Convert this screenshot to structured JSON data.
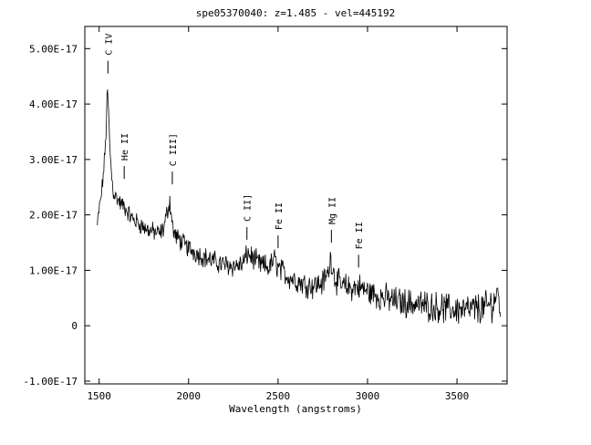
{
  "chart_data": {
    "type": "line",
    "title": "spe05370040: z=1.485 - vel=445192",
    "xlabel": "Wavelength (angstroms)",
    "ylabel": "",
    "xlim": [
      1420,
      3780
    ],
    "ylim": [
      -1.05e-17,
      5.4e-17
    ],
    "x_ticks": [
      1500,
      2000,
      2500,
      3000,
      3500
    ],
    "x_tick_labels": [
      "1500",
      "2000",
      "2500",
      "3000",
      "3500"
    ],
    "y_ticks": [
      -1e-17,
      0,
      1e-17,
      2e-17,
      3e-17,
      4e-17,
      5e-17
    ],
    "y_tick_labels": [
      "-1.00E-17",
      "0",
      "1.00E-17",
      "2.00E-17",
      "3.00E-17",
      "4.00E-17",
      "5.00E-17"
    ],
    "grid": false,
    "series": [
      {
        "x": [
          1490,
          1500,
          1510,
          1520,
          1530,
          1540,
          1546,
          1552,
          1560,
          1570,
          1580,
          1600,
          1620,
          1640,
          1660,
          1680,
          1700,
          1720,
          1740,
          1760,
          1780,
          1800,
          1820,
          1840,
          1860,
          1880,
          1895,
          1905,
          1915,
          1930,
          1950,
          1980,
          2000,
          2050,
          2100,
          2150,
          2200,
          2250,
          2300,
          2330,
          2350,
          2380,
          2400,
          2450,
          2480,
          2500,
          2550,
          2600,
          2650,
          2700,
          2750,
          2780,
          2795,
          2805,
          2820,
          2850,
          2900,
          2950,
          3000,
          3050,
          3100,
          3150,
          3200,
          3250,
          3300,
          3350,
          3400,
          3450,
          3500,
          3550,
          3600,
          3650,
          3700,
          3730,
          3745
        ],
        "values": [
          1.8e-17,
          2.1e-17,
          2.3e-17,
          2.6e-17,
          3e-17,
          3.6e-17,
          4.3e-17,
          3.9e-17,
          3.2e-17,
          2.7e-17,
          2.4e-17,
          2.3e-17,
          2.2e-17,
          2.15e-17,
          2.05e-17,
          1.95e-17,
          1.9e-17,
          1.85e-17,
          1.8e-17,
          1.75e-17,
          1.72e-17,
          1.7e-17,
          1.68e-17,
          1.66e-17,
          1.75e-17,
          2.05e-17,
          2.25e-17,
          1.95e-17,
          1.7e-17,
          1.6e-17,
          1.55e-17,
          1.45e-17,
          1.4e-17,
          1.3e-17,
          1.22e-17,
          1.15e-17,
          1.1e-17,
          1.08e-17,
          1.1e-17,
          1.3e-17,
          1.25e-17,
          1.15e-17,
          1.1e-17,
          1.05e-17,
          1.2e-17,
          1.05e-17,
          9e-18,
          8.2e-18,
          7.5e-18,
          7.2e-18,
          7.8e-18,
          9.5e-18,
          1.25e-17,
          1.05e-17,
          8.5e-18,
          7.2e-18,
          6.8e-18,
          7e-18,
          6.2e-18,
          5.5e-18,
          5e-18,
          4.5e-18,
          4.2e-18,
          4e-18,
          3.8e-18,
          3.5e-18,
          3.3e-18,
          3e-18,
          3e-18,
          2.8e-18,
          3e-18,
          3.2e-18,
          4e-18,
          6e-18,
          2e-18
        ]
      }
    ],
    "annotations": [
      {
        "label": "C IV",
        "x": 1549,
        "y": 4.55e-17
      },
      {
        "label": "He II",
        "x": 1640,
        "y": 2.65e-17
      },
      {
        "label": "C III]",
        "x": 1909,
        "y": 2.55e-17
      },
      {
        "label": "C II]",
        "x": 2326,
        "y": 1.55e-17
      },
      {
        "label": "Fe II",
        "x": 2500,
        "y": 1.4e-17
      },
      {
        "label": "Mg II",
        "x": 2798,
        "y": 1.5e-17
      },
      {
        "label": "Fe II",
        "x": 2950,
        "y": 1.05e-17
      }
    ],
    "colors": {
      "line": "#000000",
      "axes": "#000000",
      "background": "#ffffff"
    }
  }
}
